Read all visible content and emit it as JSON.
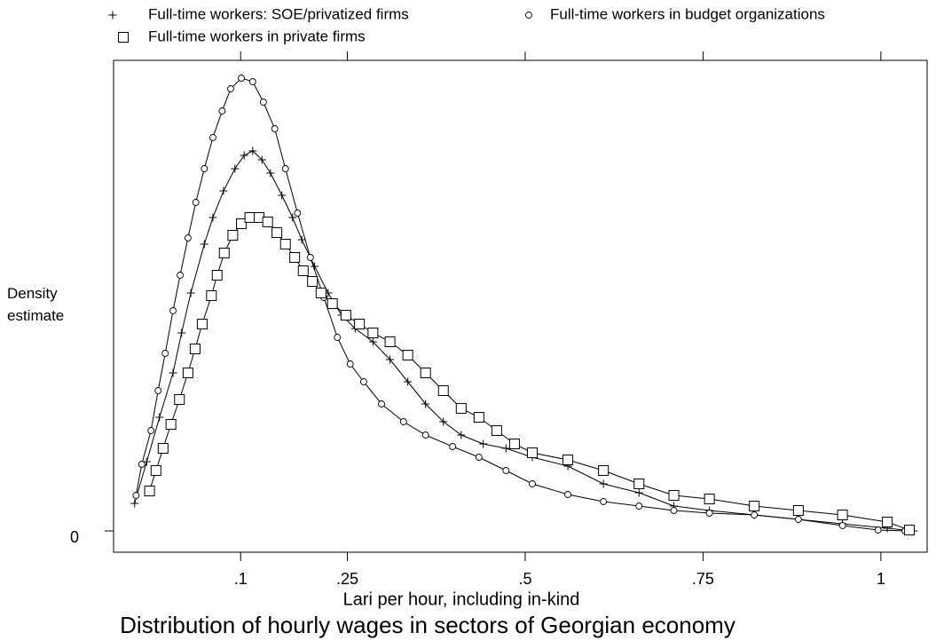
{
  "chart_data": {
    "type": "line",
    "title": "Distribution of hourly wages in sectors of Georgian economy",
    "x_label": "Lari per hour, including in-kind",
    "y_label": "Density estimate",
    "legend": "top",
    "xlim": [
      -0.0786,
      1.065
    ],
    "ylim": [
      -0.24,
      5.3
    ],
    "xticks": [
      {
        "value": 0.1,
        "label": ".1"
      },
      {
        "value": 0.25,
        "label": ".25"
      },
      {
        "value": 0.5,
        "label": ".5"
      },
      {
        "value": 0.75,
        "label": ".75"
      },
      1
    ],
    "yticks": [
      0
    ],
    "series": [
      {
        "name": "Full-time workers: SOE/privatized firms",
        "color": "#000000",
        "marker": "plus",
        "x": [
          -0.049,
          -0.032,
          -0.014,
          0.005,
          0.017,
          0.03,
          0.049,
          0.061,
          0.076,
          0.092,
          0.105,
          0.117,
          0.13,
          0.142,
          0.158,
          0.173,
          0.186,
          0.204,
          0.223,
          0.242,
          0.261,
          0.286,
          0.31,
          0.335,
          0.36,
          0.385,
          0.41,
          0.441,
          0.473,
          0.51,
          0.56,
          0.61,
          0.66,
          0.709,
          0.759,
          0.822,
          0.884,
          0.946,
          1.009,
          1.046
        ],
        "values": [
          0.31,
          0.78,
          1.28,
          1.78,
          2.23,
          2.68,
          3.23,
          3.53,
          3.83,
          4.08,
          4.23,
          4.28,
          4.18,
          4.03,
          3.78,
          3.53,
          3.28,
          2.98,
          2.68,
          2.43,
          2.28,
          2.13,
          1.93,
          1.68,
          1.43,
          1.23,
          1.08,
          0.98,
          0.93,
          0.83,
          0.73,
          0.53,
          0.43,
          0.28,
          0.23,
          0.18,
          0.13,
          0.08,
          0.03,
          0.0
        ]
      },
      {
        "name": "Full-time workers in budget organizations",
        "color": "#000000",
        "marker": "circle",
        "x": [
          -0.047,
          -0.039,
          -0.026,
          -0.016,
          -0.006,
          0.005,
          0.015,
          0.026,
          0.037,
          0.049,
          0.061,
          0.074,
          0.086,
          0.101,
          0.117,
          0.132,
          0.148,
          0.163,
          0.18,
          0.198,
          0.217,
          0.236,
          0.254,
          0.273,
          0.298,
          0.329,
          0.36,
          0.398,
          0.435,
          0.473,
          0.51,
          0.56,
          0.61,
          0.66,
          0.709,
          0.759,
          0.822,
          0.884,
          0.946,
          0.996,
          1.034
        ],
        "values": [
          0.4,
          0.75,
          1.13,
          1.58,
          2.0,
          2.48,
          2.88,
          3.3,
          3.7,
          4.08,
          4.43,
          4.73,
          4.98,
          5.1,
          5.06,
          4.83,
          4.53,
          4.08,
          3.58,
          3.08,
          2.63,
          2.18,
          1.88,
          1.68,
          1.43,
          1.23,
          1.08,
          0.95,
          0.83,
          0.68,
          0.53,
          0.41,
          0.33,
          0.28,
          0.23,
          0.2,
          0.18,
          0.13,
          0.06,
          0.01,
          0.0
        ]
      },
      {
        "name": "Full-time workers in private firms",
        "color": "#000000",
        "marker": "square",
        "x": [
          -0.028,
          -0.019,
          -0.009,
          0.002,
          0.014,
          0.026,
          0.036,
          0.046,
          0.059,
          0.067,
          0.077,
          0.089,
          0.101,
          0.113,
          0.126,
          0.138,
          0.151,
          0.163,
          0.176,
          0.188,
          0.201,
          0.213,
          0.229,
          0.248,
          0.267,
          0.286,
          0.31,
          0.335,
          0.36,
          0.385,
          0.41,
          0.435,
          0.46,
          0.485,
          0.51,
          0.56,
          0.61,
          0.66,
          0.709,
          0.759,
          0.822,
          0.884,
          0.946,
          1.009,
          1.04
        ],
        "values": [
          0.45,
          0.68,
          0.93,
          1.2,
          1.48,
          1.78,
          2.05,
          2.33,
          2.65,
          2.88,
          3.13,
          3.33,
          3.46,
          3.53,
          3.53,
          3.48,
          3.36,
          3.23,
          3.08,
          2.93,
          2.81,
          2.68,
          2.56,
          2.43,
          2.33,
          2.23,
          2.13,
          1.98,
          1.78,
          1.58,
          1.38,
          1.28,
          1.13,
          0.98,
          0.88,
          0.8,
          0.68,
          0.53,
          0.4,
          0.36,
          0.28,
          0.23,
          0.18,
          0.1,
          0.01
        ]
      }
    ]
  }
}
